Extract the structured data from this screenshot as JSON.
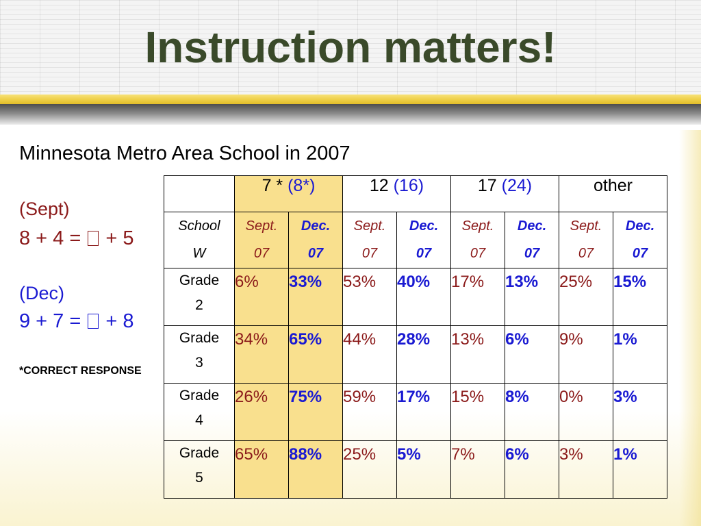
{
  "slide": {
    "title": "Instruction matters!",
    "subtitle": "Minnesota Metro Area School in 2007"
  },
  "left": {
    "sept_label": "(Sept)",
    "sept_eq_a": "8 + 4 = ",
    "sept_eq_b": " + 5",
    "dec_label": "(Dec)",
    "dec_eq_a": "9 + 7 = ",
    "dec_eq_b": " + 8",
    "footnote": "*CORRECT RESPONSE"
  },
  "table": {
    "groups": [
      {
        "main": "7 * ",
        "alt": "(8*)"
      },
      {
        "main": "12 ",
        "alt": "(16)"
      },
      {
        "main": "17 ",
        "alt": "(24)"
      },
      {
        "main": "other",
        "alt": ""
      }
    ],
    "school_label_1": "School",
    "school_label_2": "W",
    "sept_line1": "Sept.",
    "sept_line2": "07",
    "dec_line1": "Dec.",
    "dec_line2": "07",
    "rows": [
      {
        "grade_1": "Grade",
        "grade_2": "2",
        "values": [
          "6%",
          "33%",
          "53%",
          "40%",
          "17%",
          "13%",
          "25%",
          "15%"
        ]
      },
      {
        "grade_1": "Grade",
        "grade_2": "3",
        "values": [
          "34%",
          "65%",
          "44%",
          "28%",
          "13%",
          "6%",
          "9%",
          "1%"
        ]
      },
      {
        "grade_1": "Grade",
        "grade_2": "4",
        "values": [
          "26%",
          "75%",
          "59%",
          "17%",
          "15%",
          "8%",
          "0%",
          "3%"
        ]
      },
      {
        "grade_1": "Grade",
        "grade_2": "5",
        "values": [
          "65%",
          "88%",
          "25%",
          "5%",
          "7%",
          "6%",
          "3%",
          "1%"
        ]
      }
    ]
  },
  "colors": {
    "title": "#3a4a2a",
    "sept": "#8b1a1a",
    "dec": "#1a1ad2",
    "highlight": "#f9e08e",
    "gold_rule": "#efd04a"
  }
}
